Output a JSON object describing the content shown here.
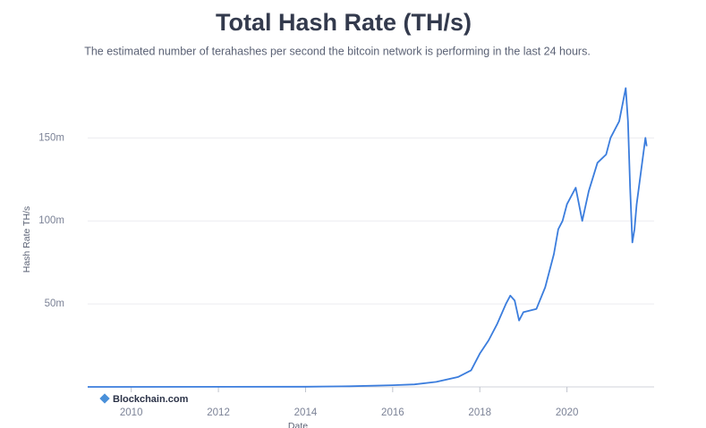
{
  "chart_data": {
    "type": "line",
    "title": "Total Hash Rate (TH/s)",
    "subtitle": "The estimated number of terahashes per second the bitcoin network is performing in the last 24 hours.",
    "y_label": "Hash Rate TH/s",
    "x_label": "Date",
    "watermark": "Blockchain.com",
    "xlim": [
      2009,
      2022
    ],
    "xticks": [
      2010,
      2012,
      2014,
      2016,
      2018,
      2020
    ],
    "ylim": [
      0,
      190000000
    ],
    "yticks": [
      {
        "value": 50000000,
        "label": "50m"
      },
      {
        "value": 100000000,
        "label": "100m"
      },
      {
        "value": 150000000,
        "label": "150m"
      }
    ],
    "grid": true,
    "series": [
      {
        "name": "Hash Rate",
        "color": "#3b7ddd",
        "x": [
          2009.0,
          2014.0,
          2015.0,
          2016.0,
          2016.5,
          2017.0,
          2017.5,
          2017.8,
          2018.0,
          2018.2,
          2018.4,
          2018.6,
          2018.7,
          2018.8,
          2018.9,
          2019.0,
          2019.3,
          2019.5,
          2019.7,
          2019.8,
          2019.9,
          2020.0,
          2020.2,
          2020.35,
          2020.5,
          2020.7,
          2020.9,
          2021.0,
          2021.2,
          2021.35,
          2021.4,
          2021.45,
          2021.5,
          2021.55,
          2021.6,
          2021.7,
          2021.8,
          2021.83
        ],
        "values": [
          0,
          100000,
          400000,
          1000000,
          1500000,
          3000000,
          6000000,
          10000000,
          20000000,
          28000000,
          38000000,
          50000000,
          55000000,
          52000000,
          40000000,
          45000000,
          47000000,
          60000000,
          80000000,
          95000000,
          100000000,
          110000000,
          120000000,
          100000000,
          118000000,
          135000000,
          140000000,
          150000000,
          160000000,
          180000000,
          160000000,
          120000000,
          87000000,
          95000000,
          110000000,
          130000000,
          150000000,
          145000000
        ]
      }
    ]
  }
}
